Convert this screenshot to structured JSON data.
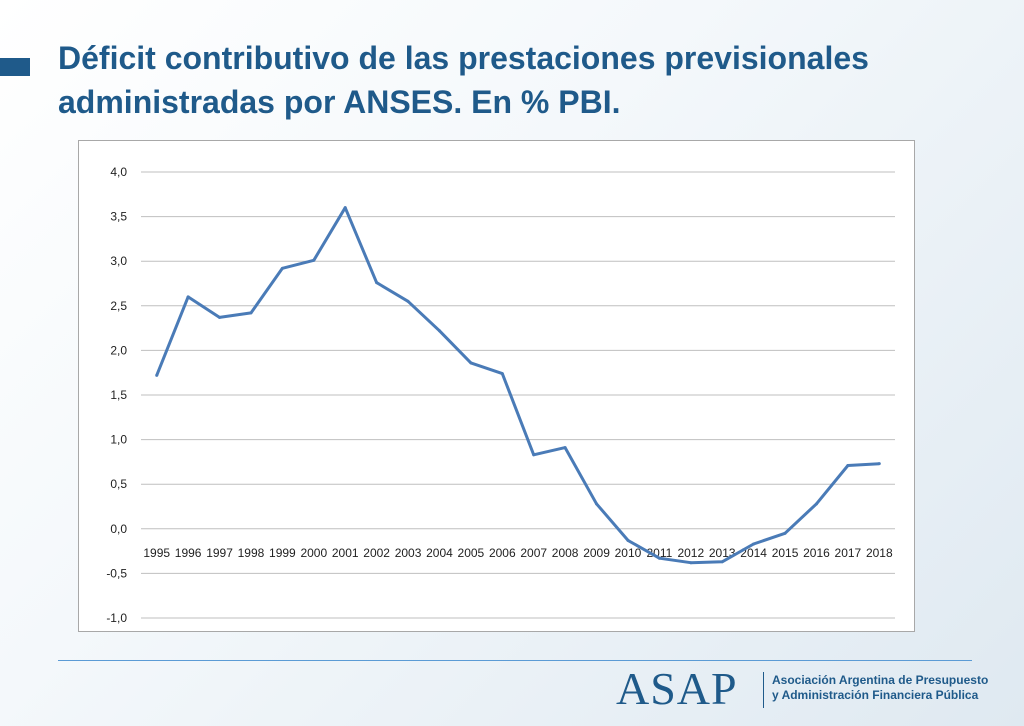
{
  "slide": {
    "title": "Déficit contributivo de las prestaciones previsionales administradas por ANSES. En % PBI."
  },
  "footer": {
    "logo_text": "ASAP",
    "org_line1": "Asociación Argentina de Presupuesto",
    "org_line2": "y Administración Financiera Pública"
  },
  "colors": {
    "title": "#1f5a8a",
    "series_line": "#4a7bb7",
    "gridline": "#bfbfbf",
    "accent": "#1f5a8a"
  },
  "chart_data": {
    "type": "line",
    "title": "",
    "xlabel": "",
    "ylabel": "",
    "ylim": [
      -1.0,
      4.0
    ],
    "yticks": [
      "-1,0",
      "-0,5",
      "0,0",
      "0,5",
      "1,0",
      "1,5",
      "2,0",
      "2,5",
      "3,0",
      "3,5",
      "4,0"
    ],
    "grid": true,
    "legend": "none",
    "categories": [
      "1995",
      "1996",
      "1997",
      "1998",
      "1999",
      "2000",
      "2001",
      "2002",
      "2003",
      "2004",
      "2005",
      "2006",
      "2007",
      "2008",
      "2009",
      "2010",
      "2011",
      "2012",
      "2013",
      "2014",
      "2015",
      "2016",
      "2017",
      "2018"
    ],
    "series": [
      {
        "values": [
          1.72,
          2.6,
          2.37,
          2.42,
          2.92,
          3.01,
          3.6,
          2.76,
          2.55,
          2.22,
          1.86,
          1.74,
          0.83,
          0.91,
          0.28,
          -0.13,
          -0.33,
          -0.38,
          -0.37,
          -0.17,
          -0.05,
          0.28,
          0.71,
          0.73
        ]
      }
    ]
  }
}
